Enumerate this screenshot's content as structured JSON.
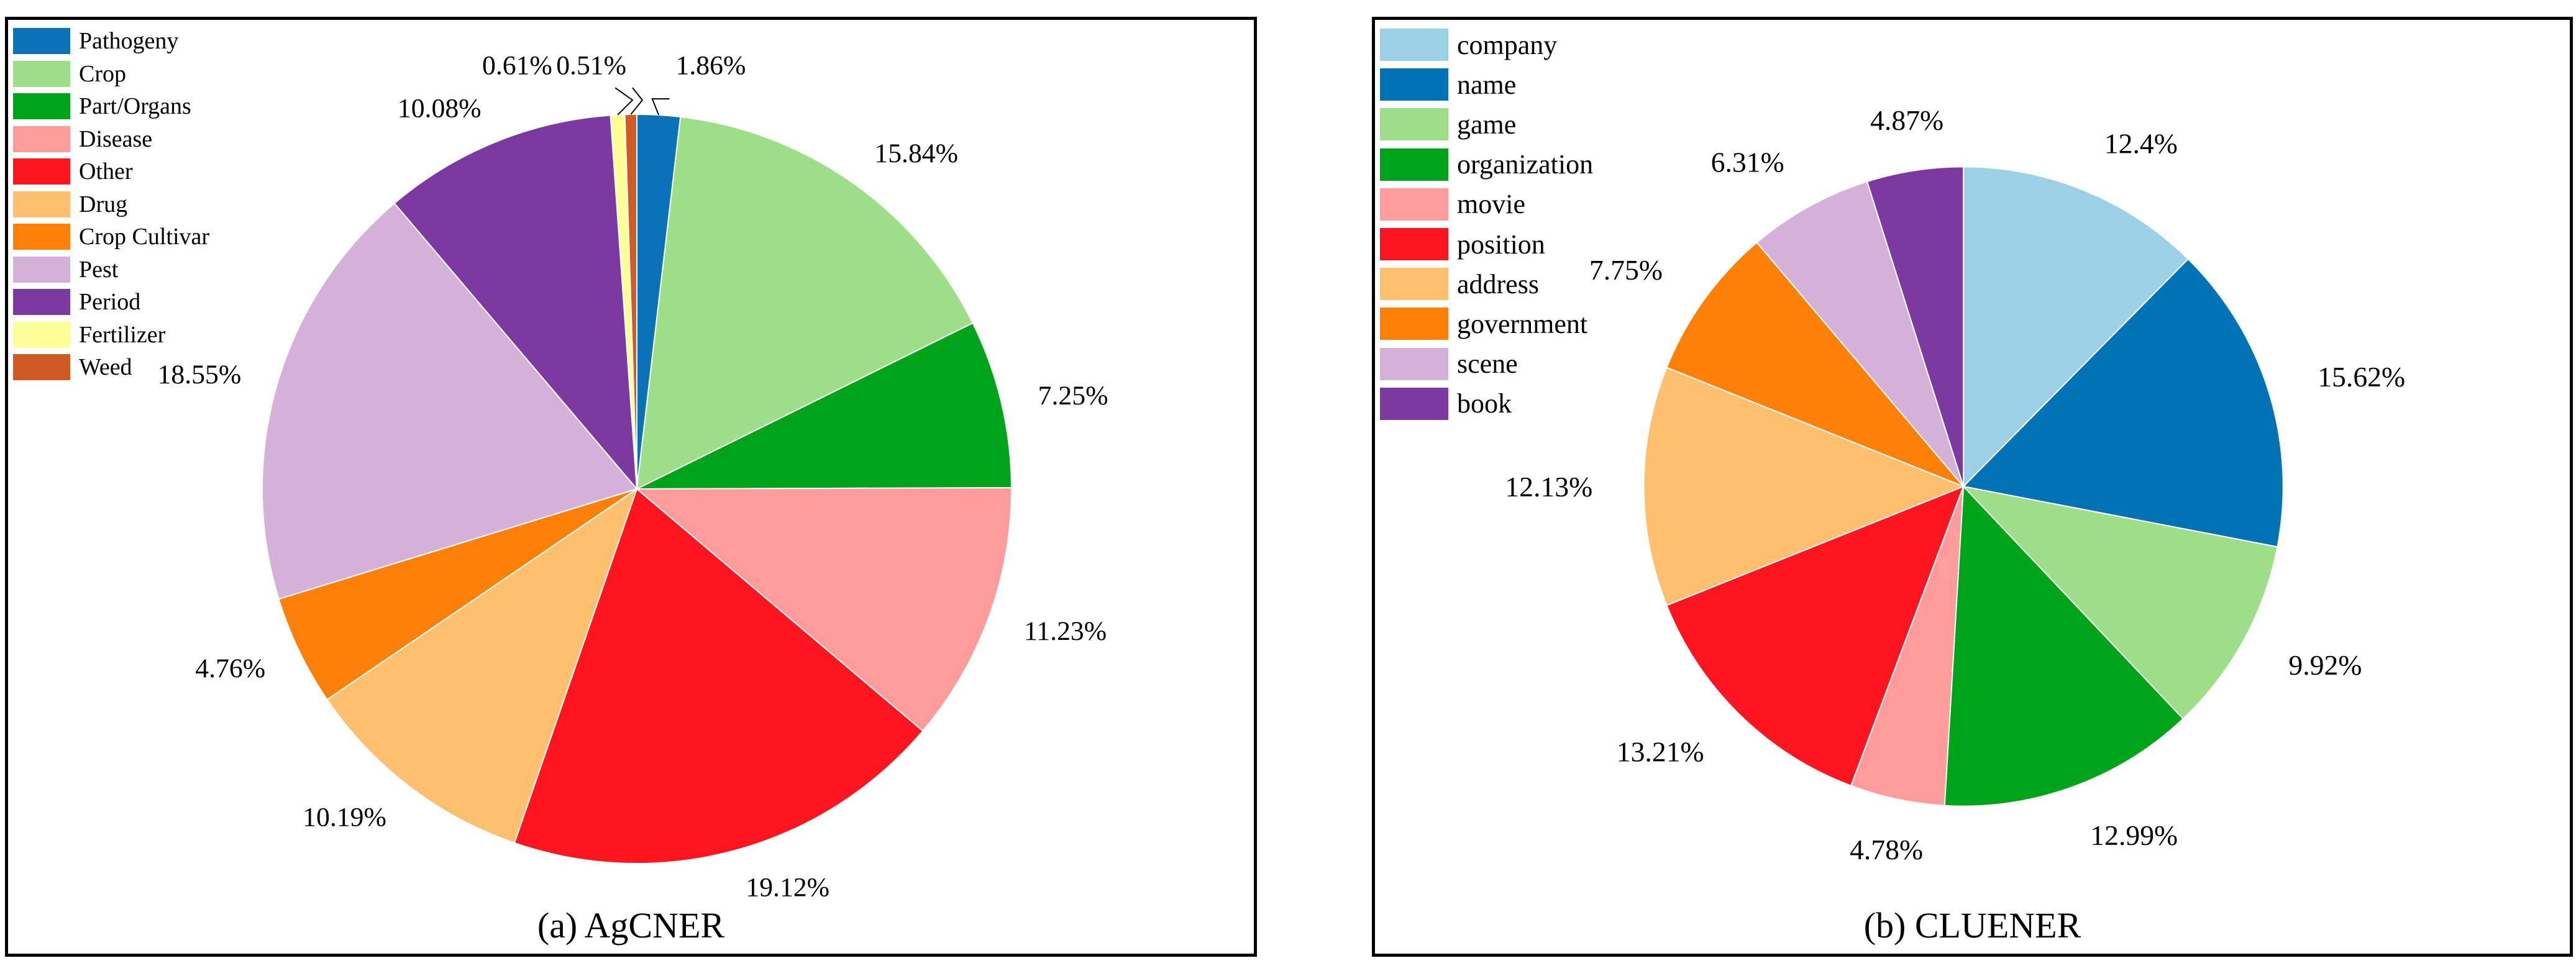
{
  "chart_data": [
    {
      "type": "pie",
      "title": "(a) AgCNER",
      "categories": [
        "Pathogeny",
        "Crop",
        "Part/Organs",
        "Disease",
        "Other",
        "Drug",
        "Crop Cultivar",
        "Pest",
        "Period",
        "Fertilizer",
        "Weed"
      ],
      "values": [
        1.86,
        15.84,
        7.25,
        11.23,
        19.12,
        10.19,
        4.76,
        18.55,
        10.08,
        0.61,
        0.51
      ],
      "labels": [
        "1.86%",
        "15.84%",
        "7.25%",
        "11.23%",
        "19.12%",
        "10.19%",
        "4.76%",
        "18.55%",
        "10.08%",
        "0.61%",
        "0.51%"
      ],
      "colors": [
        "#0a72b6",
        "#9fde88",
        "#00a41a",
        "#fe9b9b",
        "#fe151f",
        "#fec06e",
        "#fe8009",
        "#d5b1d9",
        "#7c3aa1",
        "#fefe98",
        "#cf5a24"
      ],
      "legend_position": "top-left"
    },
    {
      "type": "pie",
      "title": "(b) CLUENER",
      "categories": [
        "company",
        "name",
        "game",
        "organization",
        "movie",
        "position",
        "address",
        "government",
        "scene",
        "book"
      ],
      "values": [
        12.4,
        15.62,
        9.92,
        12.99,
        4.78,
        13.21,
        12.13,
        7.75,
        6.31,
        4.87
      ],
      "labels": [
        "12.4%",
        "15.62%",
        "9.92%",
        "12.99%",
        "4.78%",
        "13.21%",
        "12.13%",
        "7.75%",
        "6.31%",
        "4.87%"
      ],
      "colors": [
        "#9bd0e6",
        "#0072b6",
        "#9fde88",
        "#00a41a",
        "#fe9b9b",
        "#fe151f",
        "#fec06e",
        "#fe8009",
        "#d5b1d9",
        "#7c3aa1"
      ],
      "legend_position": "top-left"
    }
  ]
}
